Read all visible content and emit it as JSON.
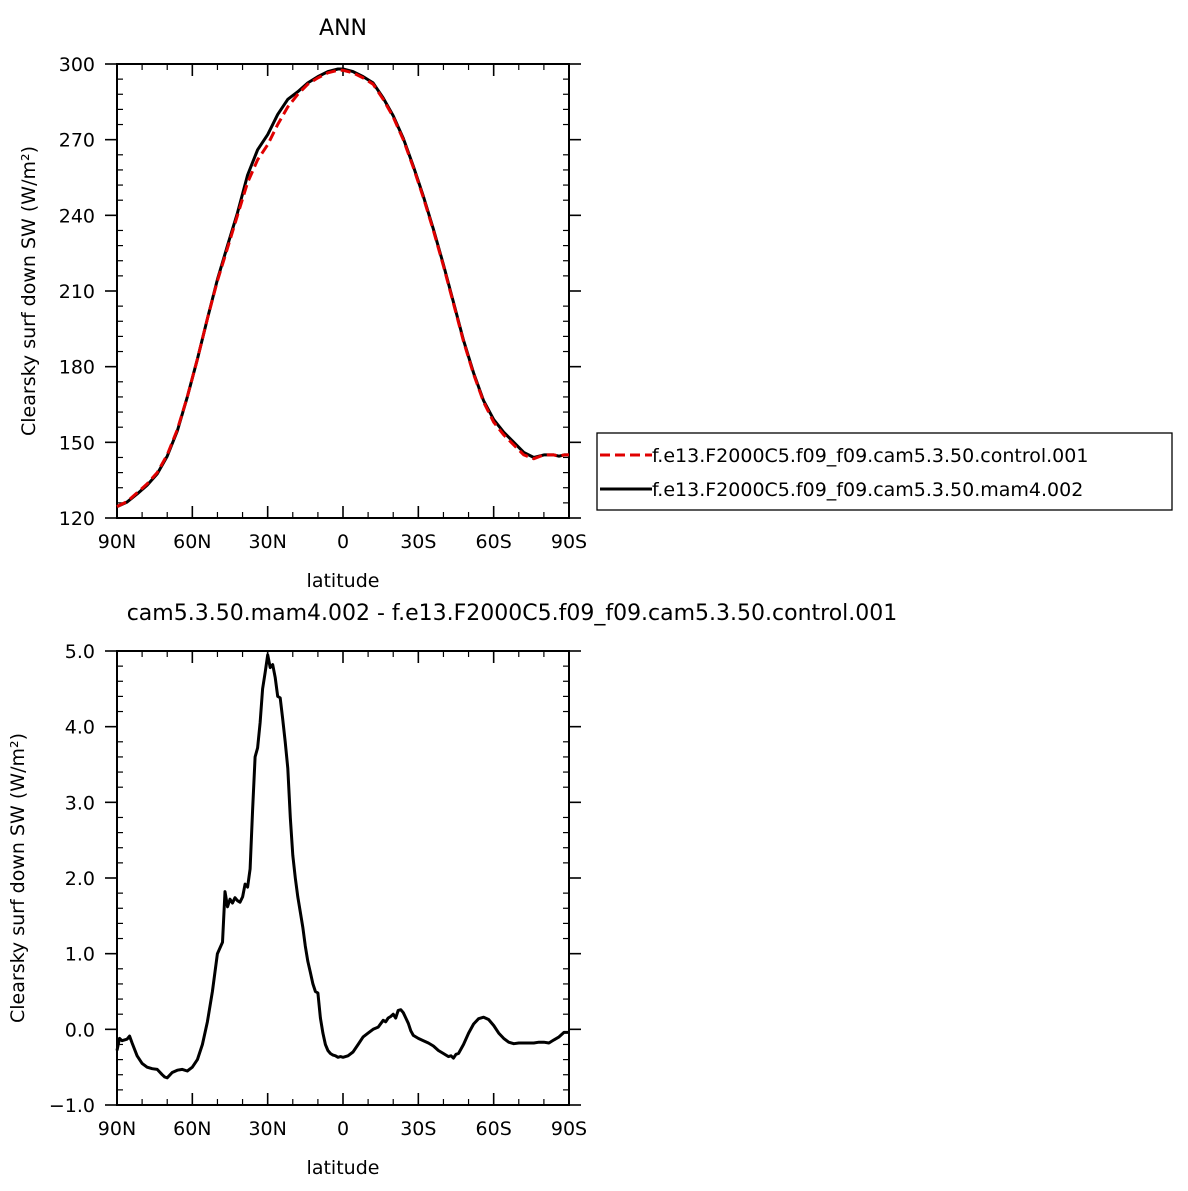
{
  "chart_data": [
    {
      "type": "line",
      "title": "ANN",
      "xlabel": "latitude",
      "ylabel": "Clearsky surf down SW (W/m²)",
      "xlim": [
        90,
        -90
      ],
      "ylim": [
        120,
        300
      ],
      "xticks": [
        90,
        60,
        30,
        0,
        -30,
        -60,
        -90
      ],
      "xtick_labels": [
        "90N",
        "60N",
        "30N",
        "0",
        "30S",
        "60S",
        "90S"
      ],
      "yticks": [
        120,
        150,
        180,
        210,
        240,
        270,
        300
      ],
      "ytick_labels": [
        "120",
        "150",
        "180",
        "210",
        "240",
        "270",
        "300"
      ],
      "grid": false,
      "legend_position": "right",
      "series": [
        {
          "name": "f.e13.F2000C5.f09_f09.cam5.3.50.control.001",
          "color": "#e00000",
          "dash": "dashed",
          "x": [
            90,
            86,
            82,
            78,
            74,
            70,
            66,
            62,
            58,
            54,
            50,
            46,
            42,
            38,
            34,
            30,
            26,
            22,
            18,
            14,
            10,
            6,
            2,
            0,
            -4,
            -8,
            -12,
            -16,
            -20,
            -24,
            -28,
            -32,
            -36,
            -40,
            -44,
            -48,
            -52,
            -56,
            -60,
            -64,
            -68,
            -72,
            -76,
            -80,
            -84,
            -86,
            -88,
            -90
          ],
          "y": [
            124.5,
            126.5,
            130,
            133.5,
            138,
            145,
            155,
            168,
            183,
            199,
            214,
            227,
            240,
            253,
            262,
            268,
            276,
            283,
            288,
            292,
            294.5,
            296.5,
            297.5,
            297.5,
            296.5,
            294.5,
            292,
            286,
            279,
            270,
            259,
            247,
            234,
            220,
            205,
            190,
            177,
            166,
            158,
            153,
            149,
            145,
            143.5,
            145,
            145,
            144.5,
            145,
            145
          ]
        },
        {
          "name": "f.e13.F2000C5.f09_f09.cam5.3.50.mam4.002",
          "color": "#000000",
          "dash": "solid",
          "x": [
            90,
            86,
            82,
            78,
            74,
            70,
            66,
            62,
            58,
            54,
            50,
            46,
            42,
            38,
            34,
            30,
            26,
            22,
            18,
            14,
            10,
            6,
            2,
            0,
            -4,
            -8,
            -12,
            -16,
            -20,
            -24,
            -28,
            -32,
            -36,
            -40,
            -44,
            -48,
            -52,
            -56,
            -60,
            -64,
            -68,
            -72,
            -76,
            -80,
            -84,
            -86,
            -88,
            -90
          ],
          "y": [
            124.5,
            126.3,
            129.5,
            133,
            137.5,
            144.5,
            154.5,
            168,
            183,
            199,
            214.5,
            228,
            241,
            256,
            266,
            272,
            280,
            286,
            289,
            292.5,
            295,
            297,
            298,
            298,
            297,
            295,
            292.5,
            286.5,
            279.5,
            270.5,
            259.5,
            247.5,
            234.5,
            220.5,
            205.5,
            190.5,
            177.5,
            166.5,
            159,
            154,
            150,
            146,
            144,
            145,
            145,
            144.5,
            145,
            145
          ]
        }
      ]
    },
    {
      "type": "line",
      "title": "cam5.3.50.mam4.002 - f.e13.F2000C5.f09_f09.cam5.3.50.control.001",
      "xlabel": "latitude",
      "ylabel": "Clearsky surf down SW (W/m²)",
      "xlim": [
        90,
        -90
      ],
      "ylim": [
        -1,
        5
      ],
      "xticks": [
        90,
        60,
        30,
        0,
        -30,
        -60,
        -90
      ],
      "xtick_labels": [
        "90N",
        "60N",
        "30N",
        "0",
        "30S",
        "60S",
        "90S"
      ],
      "yticks": [
        -1,
        0,
        1,
        2,
        3,
        4,
        5
      ],
      "ytick_labels": [
        "−1.0",
        "0.0",
        "1.0",
        "2.0",
        "3.0",
        "4.0",
        "5.0"
      ],
      "grid": false,
      "series": [
        {
          "color": "#000000",
          "dash": "solid",
          "x": [
            90,
            89,
            88,
            86,
            85,
            84,
            82,
            80,
            78,
            76,
            74,
            72,
            71,
            70,
            68,
            66,
            64,
            62,
            60,
            58,
            56,
            54,
            52,
            50,
            48,
            47,
            46,
            45,
            44,
            43,
            42,
            41,
            40,
            39,
            38,
            37,
            36,
            35,
            34,
            33,
            32,
            31,
            30,
            29,
            28,
            27,
            26,
            25,
            24,
            23,
            22,
            21,
            20,
            19,
            18,
            17,
            16,
            15,
            14,
            13,
            12,
            11,
            10,
            9,
            8,
            7,
            6,
            5,
            4,
            3,
            2,
            1,
            0,
            -2,
            -4,
            -6,
            -8,
            -10,
            -12,
            -14,
            -16,
            -17,
            -18,
            -19,
            -20,
            -21,
            -22,
            -23,
            -24,
            -25,
            -26,
            -27,
            -28,
            -29,
            -30,
            -32,
            -34,
            -36,
            -38,
            -40,
            -42,
            -43,
            -44,
            -45,
            -46,
            -48,
            -50,
            -52,
            -54,
            -56,
            -58,
            -60,
            -62,
            -64,
            -66,
            -68,
            -70,
            -72,
            -74,
            -76,
            -78,
            -80,
            -82,
            -84,
            -86,
            -88,
            -90
          ],
          "y": [
            -0.28,
            -0.12,
            -0.15,
            -0.13,
            -0.09,
            -0.18,
            -0.35,
            -0.45,
            -0.5,
            -0.52,
            -0.53,
            -0.6,
            -0.63,
            -0.64,
            -0.57,
            -0.54,
            -0.53,
            -0.55,
            -0.5,
            -0.4,
            -0.2,
            0.1,
            0.5,
            1.0,
            1.15,
            1.82,
            1.62,
            1.72,
            1.67,
            1.74,
            1.7,
            1.68,
            1.75,
            1.92,
            1.88,
            2.12,
            2.9,
            3.6,
            3.72,
            4.05,
            4.5,
            4.72,
            4.95,
            4.78,
            4.82,
            4.65,
            4.4,
            4.38,
            4.1,
            3.8,
            3.45,
            2.8,
            2.3,
            2.0,
            1.75,
            1.55,
            1.35,
            1.1,
            0.9,
            0.75,
            0.6,
            0.5,
            0.48,
            0.15,
            -0.05,
            -0.2,
            -0.28,
            -0.32,
            -0.34,
            -0.35,
            -0.37,
            -0.36,
            -0.37,
            -0.35,
            -0.3,
            -0.2,
            -0.1,
            -0.05,
            0.0,
            0.03,
            0.12,
            0.1,
            0.15,
            0.17,
            0.2,
            0.15,
            0.25,
            0.26,
            0.22,
            0.15,
            0.08,
            -0.02,
            -0.08,
            -0.1,
            -0.12,
            -0.15,
            -0.18,
            -0.22,
            -0.28,
            -0.32,
            -0.36,
            -0.35,
            -0.38,
            -0.33,
            -0.32,
            -0.2,
            -0.05,
            0.07,
            0.14,
            0.16,
            0.13,
            0.05,
            -0.05,
            -0.12,
            -0.17,
            -0.19,
            -0.18,
            -0.18,
            -0.18,
            -0.18,
            -0.17,
            -0.17,
            -0.18,
            -0.14,
            -0.1,
            -0.04,
            -0.04
          ]
        }
      ]
    }
  ]
}
